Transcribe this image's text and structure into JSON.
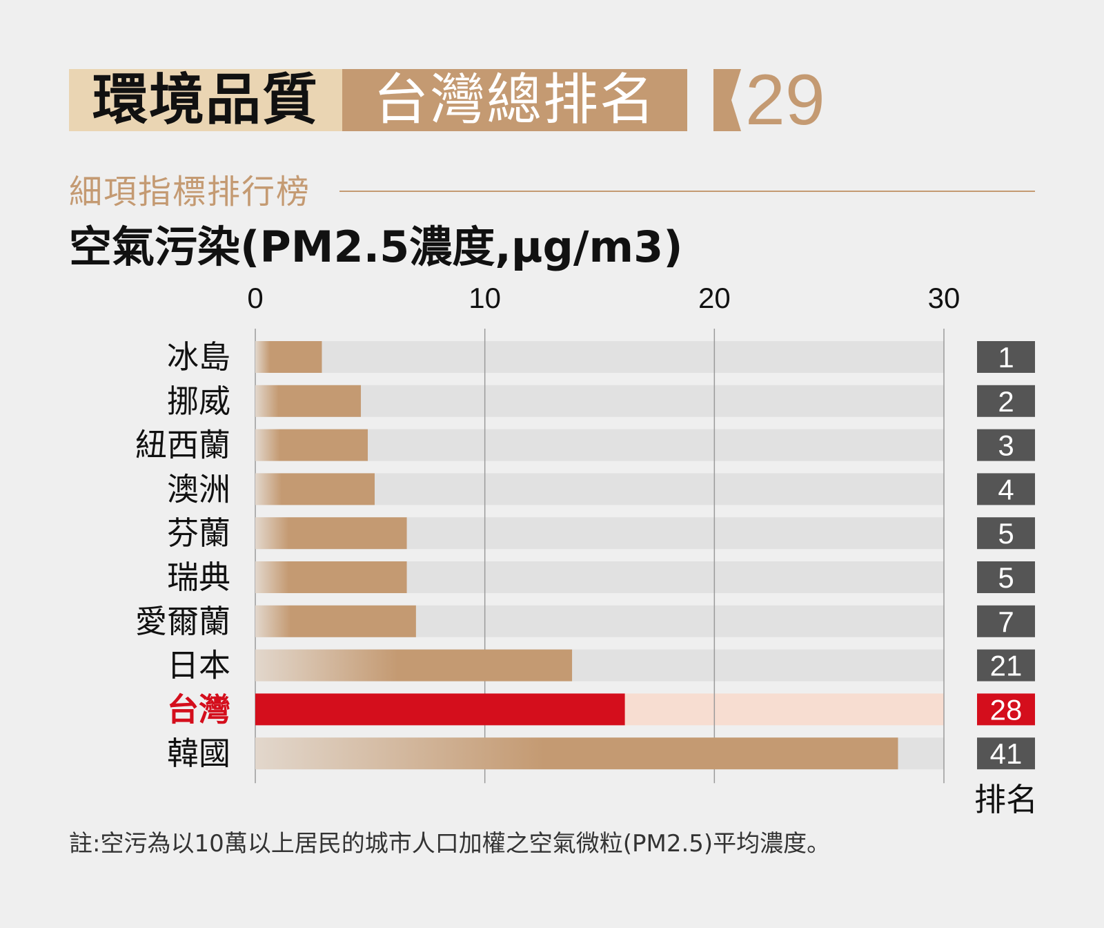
{
  "header": {
    "category": "環境品質",
    "overall_label": "台灣總排名",
    "overall_rank": "29"
  },
  "section_title": "細項指標排行榜",
  "colors": {
    "bar_brown": "#c49a72",
    "bar_highlight": "#d40e1c",
    "track": "#e1e1e1",
    "track_highlight": "#f7ddd1",
    "rank_box": "#555555"
  },
  "chart_data": {
    "type": "bar",
    "orientation": "horizontal",
    "title": "空氣污染(PM2.5濃度,μg/m3)",
    "xlim": [
      0,
      30
    ],
    "x_ticks": [
      "0",
      "10",
      "20",
      "30"
    ],
    "grid": true,
    "highlight": "台灣",
    "categories": [
      "冰島",
      "挪威",
      "紐西蘭",
      "澳洲",
      "芬蘭",
      "瑞典",
      "愛爾蘭",
      "日本",
      "台灣",
      "韓國"
    ],
    "values": [
      2.9,
      4.6,
      4.9,
      5.2,
      6.6,
      6.6,
      7.0,
      13.8,
      16.1,
      28.0
    ],
    "ranks": [
      "1",
      "2",
      "3",
      "4",
      "5",
      "5",
      "7",
      "21",
      "28",
      "41"
    ],
    "rank_label": "排名"
  },
  "note": "註:空污為以10萬以上居民的城市人口加權之空氣微粒(PM2.5)平均濃度。"
}
